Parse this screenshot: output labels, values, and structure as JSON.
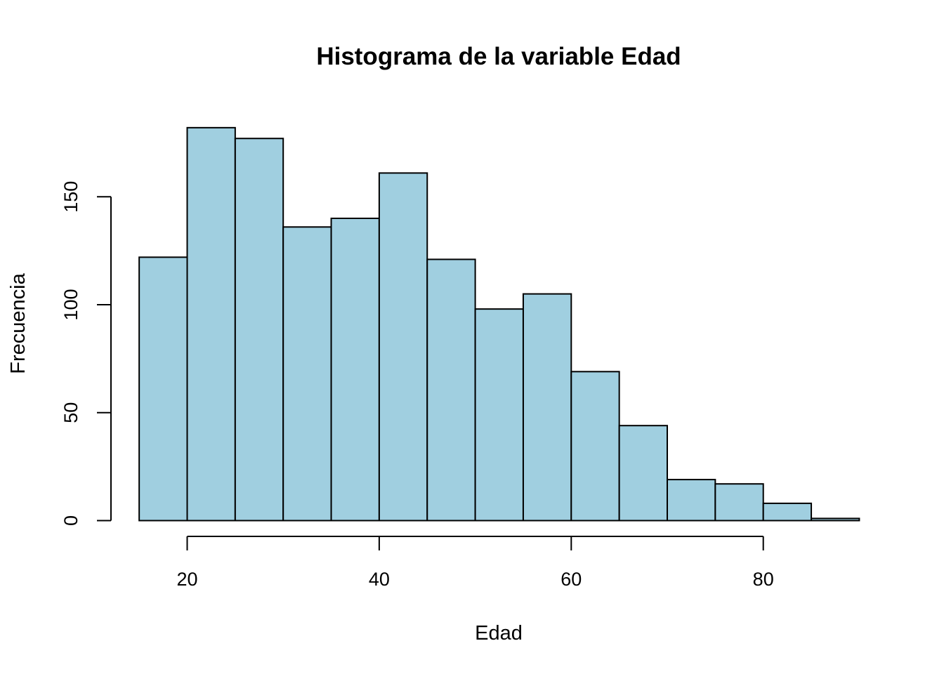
{
  "chart_data": {
    "type": "bar",
    "title": "Histograma de la variable Edad",
    "xlabel": "Edad",
    "ylabel": "Frecuencia",
    "bins": [
      {
        "from": 15,
        "to": 20,
        "value": 122
      },
      {
        "from": 20,
        "to": 25,
        "value": 182
      },
      {
        "from": 25,
        "to": 30,
        "value": 177
      },
      {
        "from": 30,
        "to": 35,
        "value": 136
      },
      {
        "from": 35,
        "to": 40,
        "value": 140
      },
      {
        "from": 40,
        "to": 45,
        "value": 161
      },
      {
        "from": 45,
        "to": 50,
        "value": 121
      },
      {
        "from": 50,
        "to": 55,
        "value": 98
      },
      {
        "from": 55,
        "to": 60,
        "value": 105
      },
      {
        "from": 60,
        "to": 65,
        "value": 69
      },
      {
        "from": 65,
        "to": 70,
        "value": 44
      },
      {
        "from": 70,
        "to": 75,
        "value": 19
      },
      {
        "from": 75,
        "to": 80,
        "value": 17
      },
      {
        "from": 80,
        "to": 85,
        "value": 8
      },
      {
        "from": 85,
        "to": 90,
        "value": 1
      }
    ],
    "xticks": [
      20,
      40,
      60,
      80
    ],
    "yticks": [
      0,
      50,
      100,
      150
    ],
    "xlim": [
      15,
      90
    ],
    "ylim": [
      0,
      182
    ],
    "bar_color": "#a0cfe0",
    "edge_color": "#000000",
    "grid": false,
    "legend": "none"
  }
}
